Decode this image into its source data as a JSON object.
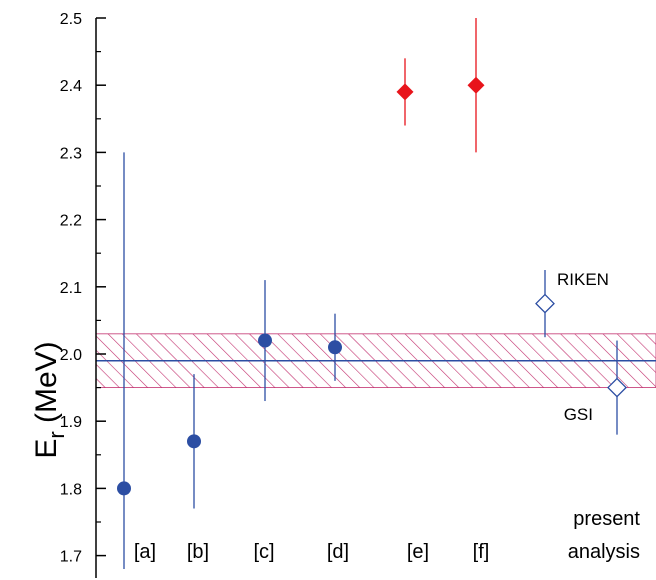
{
  "chart_data": {
    "type": "scatter",
    "ylabel_main": "E",
    "ylabel_sub": "r",
    "ylabel_unit": " (MeV)",
    "ylim": [
      1.68,
      2.5
    ],
    "yticks": [
      {
        "value": 1.7,
        "label": "1.7"
      },
      {
        "value": 1.8,
        "label": "1.8"
      },
      {
        "value": 1.9,
        "label": "1.9"
      },
      {
        "value": 2.0,
        "label": "2.0"
      },
      {
        "value": 2.1,
        "label": "2.1"
      },
      {
        "value": 2.2,
        "label": "2.2"
      },
      {
        "value": 2.3,
        "label": "2.3"
      },
      {
        "value": 2.4,
        "label": "2.4"
      },
      {
        "value": 2.5,
        "label": "2.5"
      }
    ],
    "categories": [
      "[a]",
      "[b]",
      "[c]",
      "[d]",
      "[e]",
      "[f]"
    ],
    "present_label_line1": "present",
    "present_label_line2": "analysis",
    "points": [
      {
        "category": "[a]",
        "value": 1.8,
        "err_low": 1.68,
        "err_high": 2.3,
        "marker": "circle",
        "color": "#2c4ea3"
      },
      {
        "category": "[b]",
        "value": 1.87,
        "err_low": 1.77,
        "err_high": 1.97,
        "marker": "circle",
        "color": "#2c4ea3"
      },
      {
        "category": "[c]",
        "value": 2.02,
        "err_low": 1.93,
        "err_high": 2.11,
        "marker": "circle",
        "color": "#2c4ea3"
      },
      {
        "category": "[d]",
        "value": 2.01,
        "err_low": 1.96,
        "err_high": 2.06,
        "marker": "circle",
        "color": "#2c4ea3"
      },
      {
        "category": "[e]",
        "value": 2.39,
        "err_low": 2.34,
        "err_high": 2.44,
        "marker": "diamond-filled",
        "color": "#e8141b"
      },
      {
        "category": "[f]",
        "value": 2.4,
        "err_low": 2.3,
        "err_high": 2.5,
        "marker": "diamond-filled",
        "color": "#e8141b"
      },
      {
        "category": "RIKEN",
        "value": 2.075,
        "err_low": 2.025,
        "err_high": 2.125,
        "marker": "diamond-open",
        "color": "#2c4ea3",
        "label": "RIKEN"
      },
      {
        "category": "GSI",
        "value": 1.95,
        "err_low": 1.88,
        "err_high": 2.02,
        "marker": "diamond-open",
        "color": "#2c4ea3",
        "label": "GSI"
      }
    ],
    "band": {
      "center": 1.99,
      "low": 1.95,
      "high": 2.03,
      "line_color": "#2c4ea3",
      "hatch_color": "#c2306e"
    }
  }
}
